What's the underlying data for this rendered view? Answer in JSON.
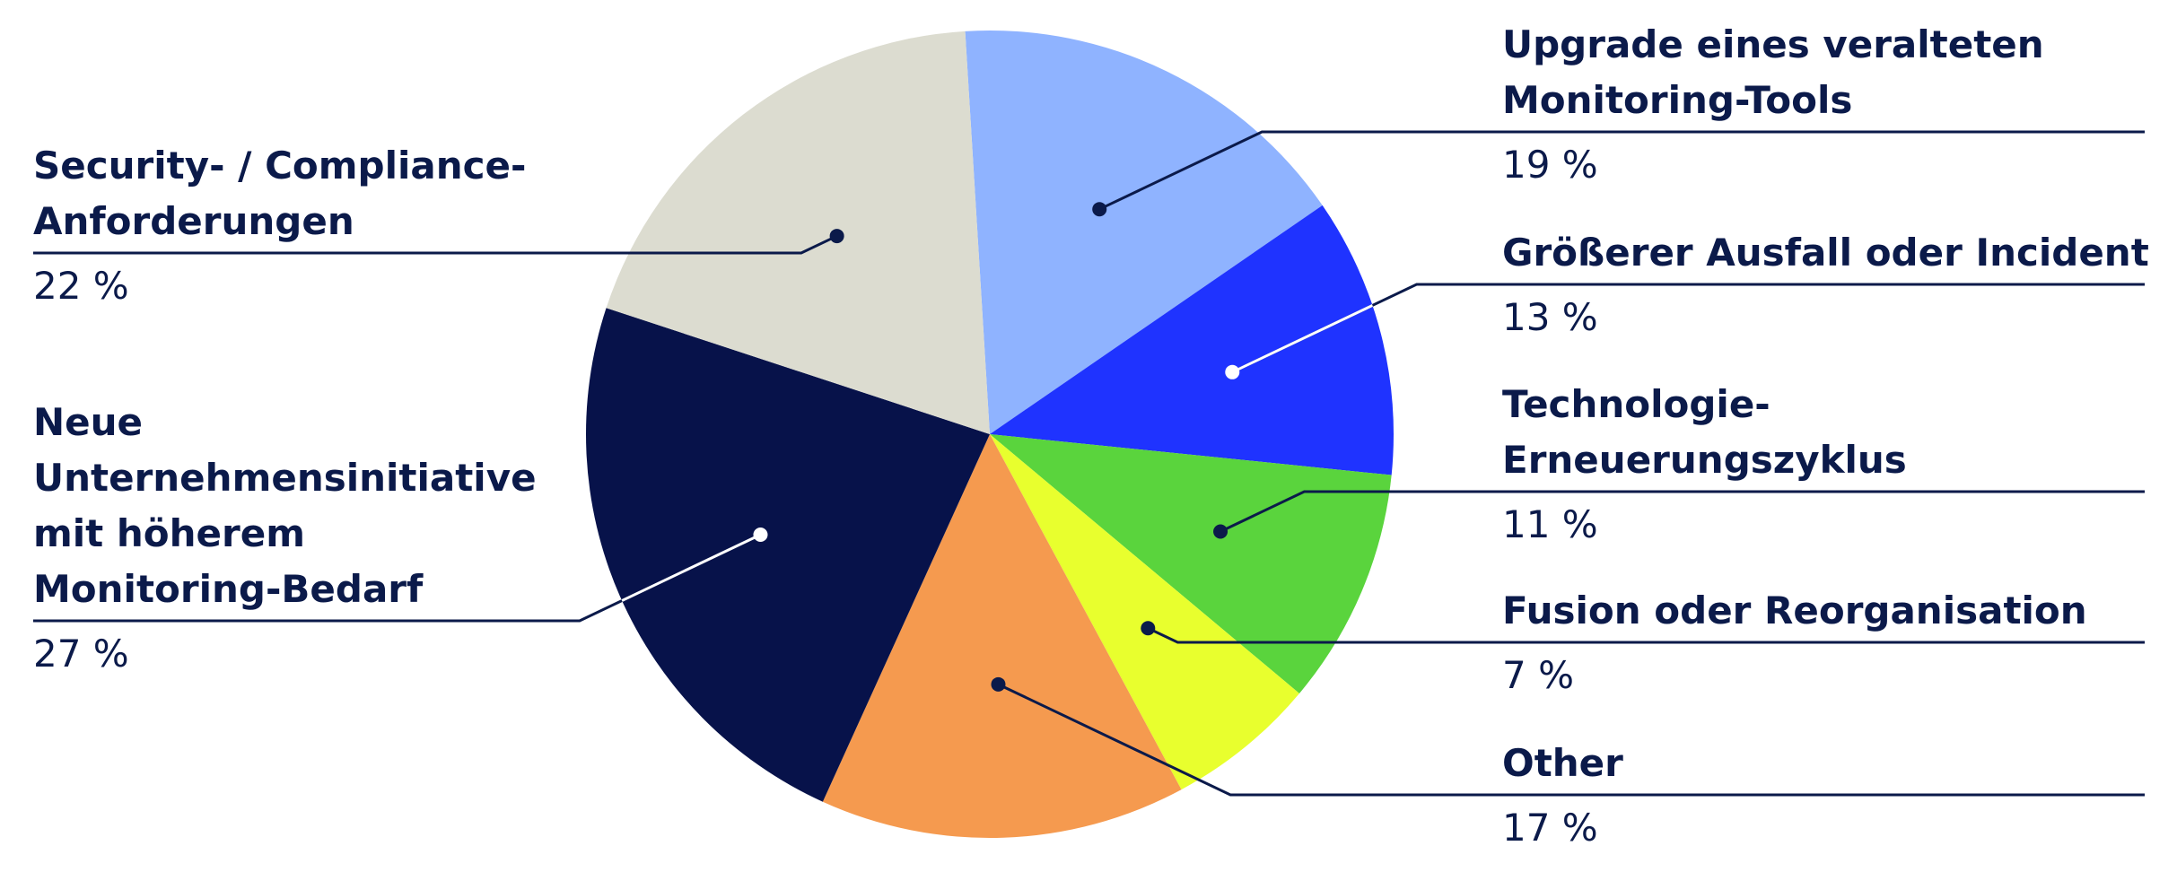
{
  "chart_data": {
    "type": "pie",
    "categories": [
      "Upgrade eines veralteten Monitoring-Tools",
      "Größerer Ausfall oder Incident",
      "Technologie-Erneuerungszyklus",
      "Fusion oder Reorganisation",
      "Other",
      "Neue Unternehmensinitiative mit höherem Monitoring-Bedarf",
      "Security- / Compliance-Anforderungen"
    ],
    "values": [
      19,
      13,
      11,
      7,
      17,
      27,
      22
    ],
    "value_labels": [
      "19 %",
      "13 %",
      "11 %",
      "7 %",
      "17 %",
      "27 %",
      "22 %"
    ],
    "colors": [
      "#8fb3ff",
      "#1f33ff",
      "#5ad43d",
      "#e8ff2e",
      "#f59a4f",
      "#07124a",
      "#dcdcd0"
    ]
  }
}
